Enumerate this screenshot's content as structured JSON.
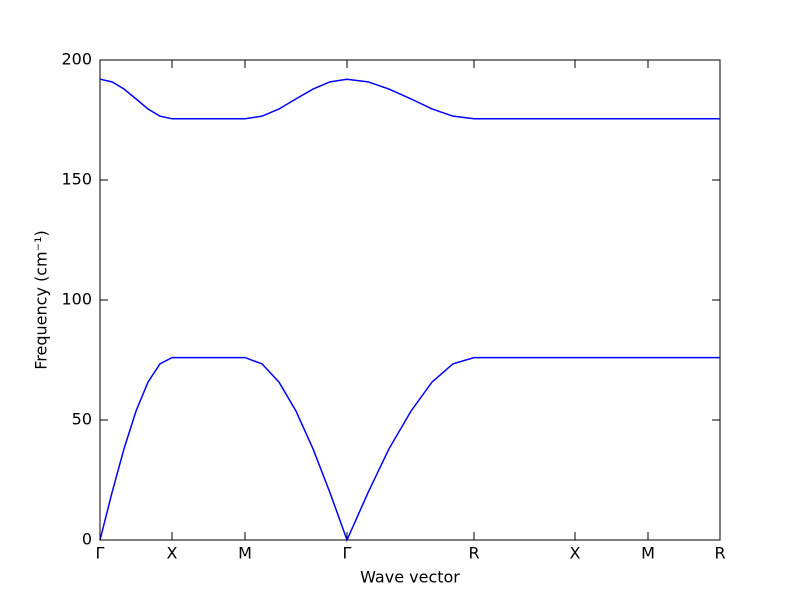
{
  "chart_data": {
    "type": "line",
    "ylabel": "Frequency (cm⁻¹)",
    "xlabel": "Wave vector",
    "x": [
      0,
      0.12,
      0.24,
      0.36,
      0.48,
      0.6,
      0.72,
      1.45,
      1.62,
      1.79,
      1.96,
      2.13,
      2.3,
      2.47,
      2.68,
      2.89,
      3.11,
      3.32,
      3.53,
      3.74,
      4.75,
      5.48,
      6.2
    ],
    "series": [
      {
        "color": "#0000ff",
        "values": [
          0,
          19.7,
          38,
          53.7,
          65.8,
          73.4,
          76,
          76,
          73.4,
          65.8,
          53.7,
          38,
          19.7,
          0,
          19.7,
          38,
          53.7,
          65.8,
          73.4,
          76,
          76,
          76,
          76
        ]
      },
      {
        "color": "#0000ff",
        "values": [
          192,
          190.9,
          187.9,
          183.8,
          179.6,
          176.6,
          175.5,
          175.5,
          176.6,
          179.6,
          183.8,
          187.9,
          190.9,
          192,
          190.9,
          187.9,
          183.8,
          179.6,
          176.6,
          175.5,
          175.5,
          175.5,
          175.5
        ]
      }
    ],
    "xlim": [
      0,
      6.2
    ],
    "xticks": [
      {
        "value": 0,
        "label": "Γ"
      },
      {
        "value": 0.72,
        "label": "X"
      },
      {
        "value": 1.45,
        "label": "M"
      },
      {
        "value": 2.47,
        "label": "Γ"
      },
      {
        "value": 3.74,
        "label": "R"
      },
      {
        "value": 4.75,
        "label": "X"
      },
      {
        "value": 5.48,
        "label": "M"
      },
      {
        "value": 6.2,
        "label": "R"
      }
    ],
    "ylim": [
      0,
      200
    ],
    "yticks": [
      0,
      50,
      100,
      150,
      200
    ],
    "grid": false
  }
}
